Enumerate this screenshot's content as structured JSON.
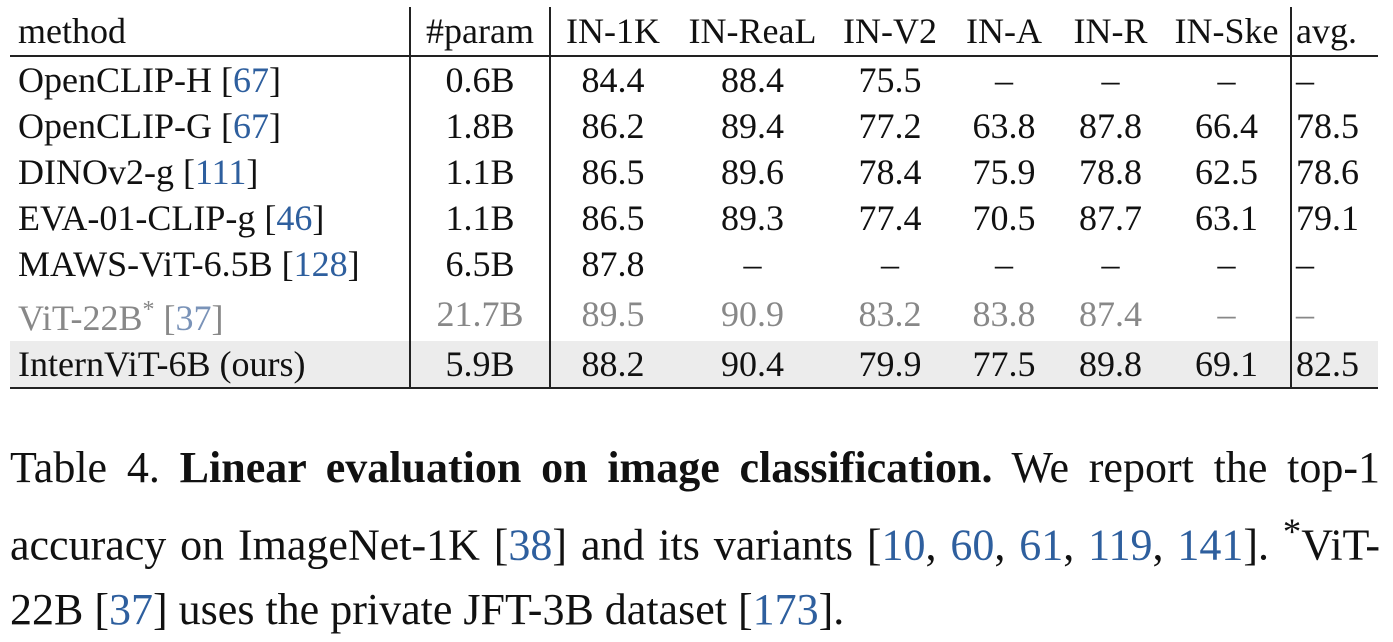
{
  "table": {
    "headers": [
      "method",
      "#param",
      "IN-1K",
      "IN-ReaL",
      "IN-V2",
      "IN-A",
      "IN-R",
      "IN-Ske",
      "avg."
    ],
    "rows": [
      {
        "method": "OpenCLIP-H",
        "cite": "67",
        "cells": [
          "0.6B",
          "84.4",
          "88.4",
          "75.5",
          "–",
          "–",
          "–",
          "–"
        ],
        "style": "normal"
      },
      {
        "method": "OpenCLIP-G",
        "cite": "67",
        "cells": [
          "1.8B",
          "86.2",
          "89.4",
          "77.2",
          "63.8",
          "87.8",
          "66.4",
          "78.5"
        ],
        "style": "normal"
      },
      {
        "method": "DINOv2-g",
        "cite": "111",
        "cells": [
          "1.1B",
          "86.5",
          "89.6",
          "78.4",
          "75.9",
          "78.8",
          "62.5",
          "78.6"
        ],
        "style": "normal"
      },
      {
        "method": "EVA-01-CLIP-g",
        "cite": "46",
        "cells": [
          "1.1B",
          "86.5",
          "89.3",
          "77.4",
          "70.5",
          "87.7",
          "63.1",
          "79.1"
        ],
        "style": "normal"
      },
      {
        "method": "MAWS-ViT-6.5B",
        "cite": "128",
        "cells": [
          "6.5B",
          "87.8",
          "–",
          "–",
          "–",
          "–",
          "–",
          "–"
        ],
        "style": "normal"
      },
      {
        "method": "ViT-22B",
        "sup": "*",
        "cite": "37",
        "cells": [
          "21.7B",
          "89.5",
          "90.9",
          "83.2",
          "83.8",
          "87.4",
          "–",
          "–"
        ],
        "style": "gray"
      },
      {
        "method": "InternViT-6B (ours)",
        "cells": [
          "5.9B",
          "88.2",
          "90.4",
          "79.9",
          "77.5",
          "89.8",
          "69.1",
          "82.5"
        ],
        "style": "ours"
      }
    ]
  },
  "caption": {
    "label": "Table 4.",
    "title": "Linear evaluation on image classification.",
    "text1": "We report the top-1 accuracy on ImageNet-1K",
    "cite_a": "38",
    "text2": "and its variants",
    "cites_b": [
      "10",
      "60",
      "61",
      "119",
      "141"
    ],
    "text3": "ViT-22B",
    "cite_c": "37",
    "text4": "uses the private JFT-3B dataset",
    "cite_d": "173",
    "sup": "*"
  }
}
